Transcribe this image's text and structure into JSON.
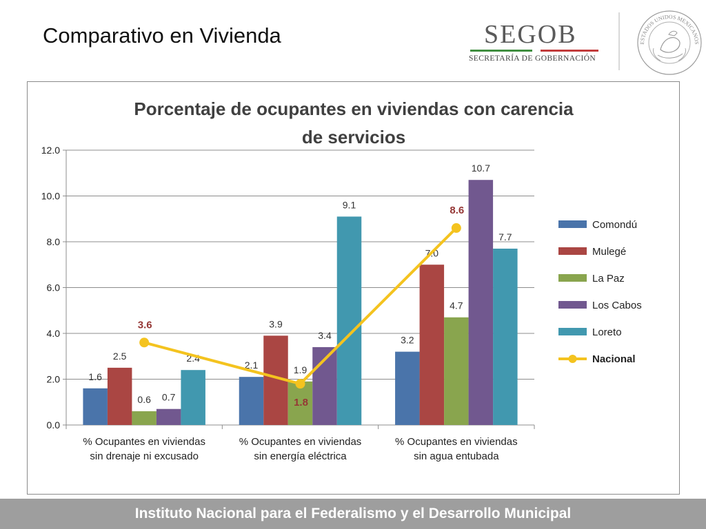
{
  "slide": {
    "title": "Comparativo en Vivienda",
    "footer": "Instituto Nacional para el Federalismo y el Desarrollo Municipal"
  },
  "logo": {
    "wordmark": "SEGOB",
    "subtitle": "SECRETARÍA DE GOBERNACIÓN",
    "seal_text": "ESTADOS UNIDOS MEXICANOS",
    "colors": {
      "green": "#3f8e3f",
      "red": "#c23b3b",
      "gray": "#5a5a5a"
    }
  },
  "chart_data": {
    "type": "bar",
    "title": "Porcentaje de ocupantes en viviendas con carencia de servicios",
    "title_lines": [
      "Porcentaje de ocupantes en viviendas con carencia",
      "de servicios"
    ],
    "categories": [
      "% Ocupantes en viviendas sin drenaje ni excusado",
      "% Ocupantes en viviendas sin energía eléctrica",
      "% Ocupantes en viviendas sin agua entubada"
    ],
    "category_lines": [
      [
        "% Ocupantes en viviendas",
        "sin drenaje ni excusado"
      ],
      [
        "% Ocupantes en viviendas",
        "sin energía eléctrica"
      ],
      [
        "% Ocupantes en viviendas",
        "sin agua entubada"
      ]
    ],
    "series": [
      {
        "name": "Comondú",
        "type": "bar",
        "color": "#4a74aa",
        "values": [
          1.6,
          2.1,
          3.2
        ],
        "labels": [
          "1.6",
          "2.1",
          "3.2"
        ]
      },
      {
        "name": "Mulegé",
        "type": "bar",
        "color": "#aa4643",
        "values": [
          2.5,
          3.9,
          7.0
        ],
        "labels": [
          "2.5",
          "3.9",
          "7.0"
        ]
      },
      {
        "name": "La Paz",
        "type": "bar",
        "color": "#89a54e",
        "values": [
          0.6,
          1.9,
          4.7
        ],
        "labels": [
          "0.6",
          "1.9",
          "4.7"
        ]
      },
      {
        "name": "Los Cabos",
        "type": "bar",
        "color": "#71588f",
        "values": [
          0.7,
          3.4,
          10.7
        ],
        "labels": [
          "0.7",
          "3.4",
          "10.7"
        ]
      },
      {
        "name": "Loreto",
        "type": "bar",
        "color": "#4198af",
        "values": [
          2.4,
          9.1,
          7.7
        ],
        "labels": [
          "2.4",
          "9.1",
          "7.7"
        ]
      },
      {
        "name": "Nacional",
        "type": "line",
        "color": "#f4c31f",
        "label_color": "#953735",
        "values": [
          3.6,
          1.8,
          8.6
        ],
        "labels": [
          "3.6",
          "1.8",
          "8.6"
        ]
      }
    ],
    "ylim": [
      0,
      12
    ],
    "yticks": [
      "0.0",
      "2.0",
      "4.0",
      "6.0",
      "8.0",
      "10.0",
      "12.0"
    ],
    "ytick_values": [
      0,
      2,
      4,
      6,
      8,
      10,
      12
    ],
    "grid": true,
    "legend": "right",
    "xlabel": "",
    "ylabel": ""
  }
}
